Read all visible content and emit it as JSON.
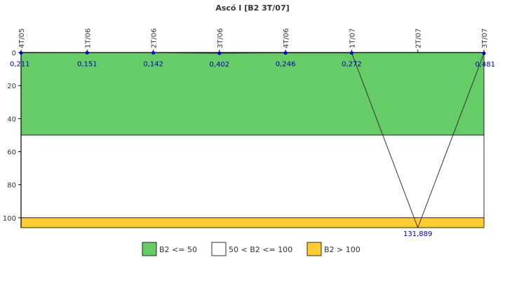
{
  "chart_data": {
    "type": "line",
    "title": "Ascó I [B2 3T/07]",
    "xlabel": "",
    "ylabel": "",
    "categories": [
      "4T/05",
      "1T/06",
      "2T/06",
      "3T/06",
      "4T/06",
      "1T/07",
      "2T/07",
      "3T/07"
    ],
    "series": [
      {
        "values": [
          0.211,
          0.151,
          0.142,
          0.402,
          0.246,
          0.272,
          131.889,
          0.481
        ],
        "labels": [
          "0,211",
          "0,151",
          "0,142",
          "0,402",
          "0,246",
          "0,272",
          "131,889",
          "0,481"
        ]
      }
    ],
    "y_axis": {
      "reversed": true,
      "ylim": [
        0,
        106
      ],
      "ticks": [
        0,
        20,
        40,
        60,
        80,
        100
      ]
    },
    "bands": [
      {
        "label": "B2 <= 50",
        "from": 0,
        "to": 50,
        "color": "#66cc66"
      },
      {
        "label": "50 < B2 <= 100",
        "from": 50,
        "to": 100,
        "color": "#ffffff"
      },
      {
        "label": "B2 > 100",
        "from": 100,
        "to": 106,
        "color": "#ffcc33"
      }
    ],
    "legend_position": "bottom-center",
    "grid": false,
    "line_color": "#333333",
    "marker_color": "#0000cc"
  }
}
